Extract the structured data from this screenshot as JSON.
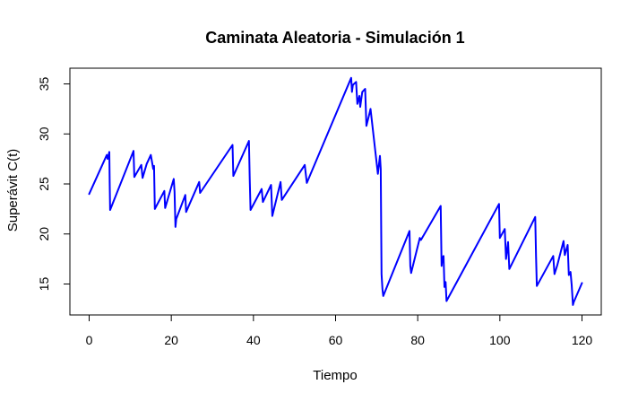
{
  "chart_data": {
    "type": "line",
    "title": "Caminata Aleatoria - Simulación 1",
    "xlabel": "Tiempo",
    "ylabel": "Superávit C(t)",
    "xlim": [
      0,
      120
    ],
    "ylim": [
      13,
      36
    ],
    "x_ticks": [
      0,
      20,
      40,
      60,
      80,
      100,
      120
    ],
    "y_ticks": [
      15,
      20,
      25,
      30,
      35
    ],
    "grid": false,
    "legend": "none",
    "line_color": "#0000ff",
    "series": [
      {
        "x": [
          0,
          4.3,
          4.5,
          4.9,
          5.0,
          5.1,
          10.8,
          11.0,
          12.7,
          13.0,
          14.0,
          15.0,
          15.6,
          15.8,
          16.0,
          18.3,
          18.5,
          20.6,
          20.8,
          21.0,
          21.2,
          23.4,
          23.6,
          26.8,
          27.0,
          34.9,
          35.1,
          38.9,
          39.1,
          39.3,
          42.0,
          42.3,
          44.3,
          44.6,
          46.6,
          46.9,
          52.5,
          53.0,
          63.8,
          64.0,
          64.2,
          65.0,
          65.3,
          65.8,
          66.0,
          66.5,
          67.2,
          67.5,
          68.3,
          68.5,
          70.3,
          70.8,
          71.0,
          71.1,
          71.2,
          71.4,
          71.6,
          71.8,
          78.0,
          78.2,
          78.4,
          80.5,
          80.8,
          85.6,
          85.8,
          86.0,
          86.3,
          86.5,
          86.8,
          87.0,
          99.8,
          100.0,
          101.2,
          101.5,
          102.0,
          102.3,
          108.6,
          108.8,
          109.0,
          113.0,
          113.3,
          114.0,
          115.5,
          115.8,
          116.5,
          116.8,
          117.2,
          117.5,
          117.8,
          118.0,
          120.0
        ],
        "y": [
          24.0,
          27.9,
          27.5,
          28.2,
          25.2,
          22.4,
          28.3,
          25.7,
          26.9,
          25.6,
          27.0,
          27.9,
          26.5,
          26.8,
          22.5,
          24.3,
          22.6,
          25.5,
          24.2,
          20.7,
          21.5,
          23.9,
          22.2,
          25.2,
          24.1,
          28.9,
          25.8,
          29.3,
          25.5,
          22.4,
          24.5,
          23.2,
          24.9,
          21.8,
          25.2,
          23.4,
          26.9,
          25.1,
          35.6,
          34.2,
          34.9,
          35.2,
          33.0,
          33.8,
          32.7,
          34.2,
          34.5,
          30.8,
          32.1,
          32.5,
          26.0,
          27.8,
          26.5,
          20.5,
          16.0,
          14.5,
          13.8,
          14.0,
          20.3,
          16.8,
          16.1,
          19.6,
          19.4,
          22.8,
          16.8,
          17.6,
          17.8,
          14.7,
          15.2,
          13.3,
          23.0,
          19.6,
          20.5,
          17.5,
          19.2,
          16.5,
          21.7,
          17.8,
          14.8,
          17.8,
          16.0,
          16.9,
          19.3,
          17.9,
          18.9,
          15.9,
          16.2,
          14.9,
          12.9,
          13.2,
          15.1
        ]
      }
    ]
  }
}
